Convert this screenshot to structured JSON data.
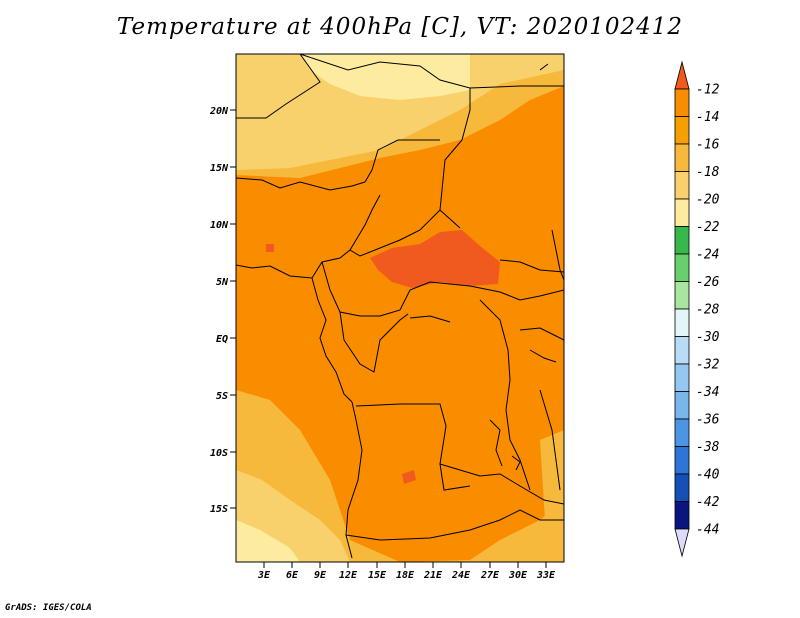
{
  "title": "Temperature at 400hPa [C], VT: 2020102412",
  "credit": "GrADS: IGES/COLA",
  "lat_labels": [
    "20N",
    "15N",
    "10N",
    "5N",
    "EQ",
    "5S",
    "10S",
    "15S"
  ],
  "lon_labels": [
    "3E",
    "6E",
    "9E",
    "12E",
    "15E",
    "18E",
    "21E",
    "24E",
    "27E",
    "30E",
    "33E"
  ],
  "colorbar": {
    "labels": [
      "-12",
      "-14",
      "-16",
      "-18",
      "-20",
      "-22",
      "-24",
      "-26",
      "-28",
      "-30",
      "-32",
      "-34",
      "-36",
      "-38",
      "-40",
      "-42",
      "-44"
    ],
    "colors": [
      "#f05a1e",
      "#fa8c00",
      "#f5a000",
      "#f7b93c",
      "#f9d16c",
      "#fdeca0",
      "#36b84a",
      "#66d06c",
      "#a8e6a0",
      "#e2f6f8",
      "#b8dcf6",
      "#94c8f2",
      "#78b6ec",
      "#4a96e4",
      "#2b76d8",
      "#1450b6",
      "#0a1680",
      "#dcdcf8"
    ]
  },
  "colors": {
    "t_12_14": "#f05a1e",
    "t_14_16": "#fa8c00",
    "t_16_18": "#f7b93c",
    "t_18_20": "#f9d16c",
    "t_20_22": "#fdeca0"
  }
}
